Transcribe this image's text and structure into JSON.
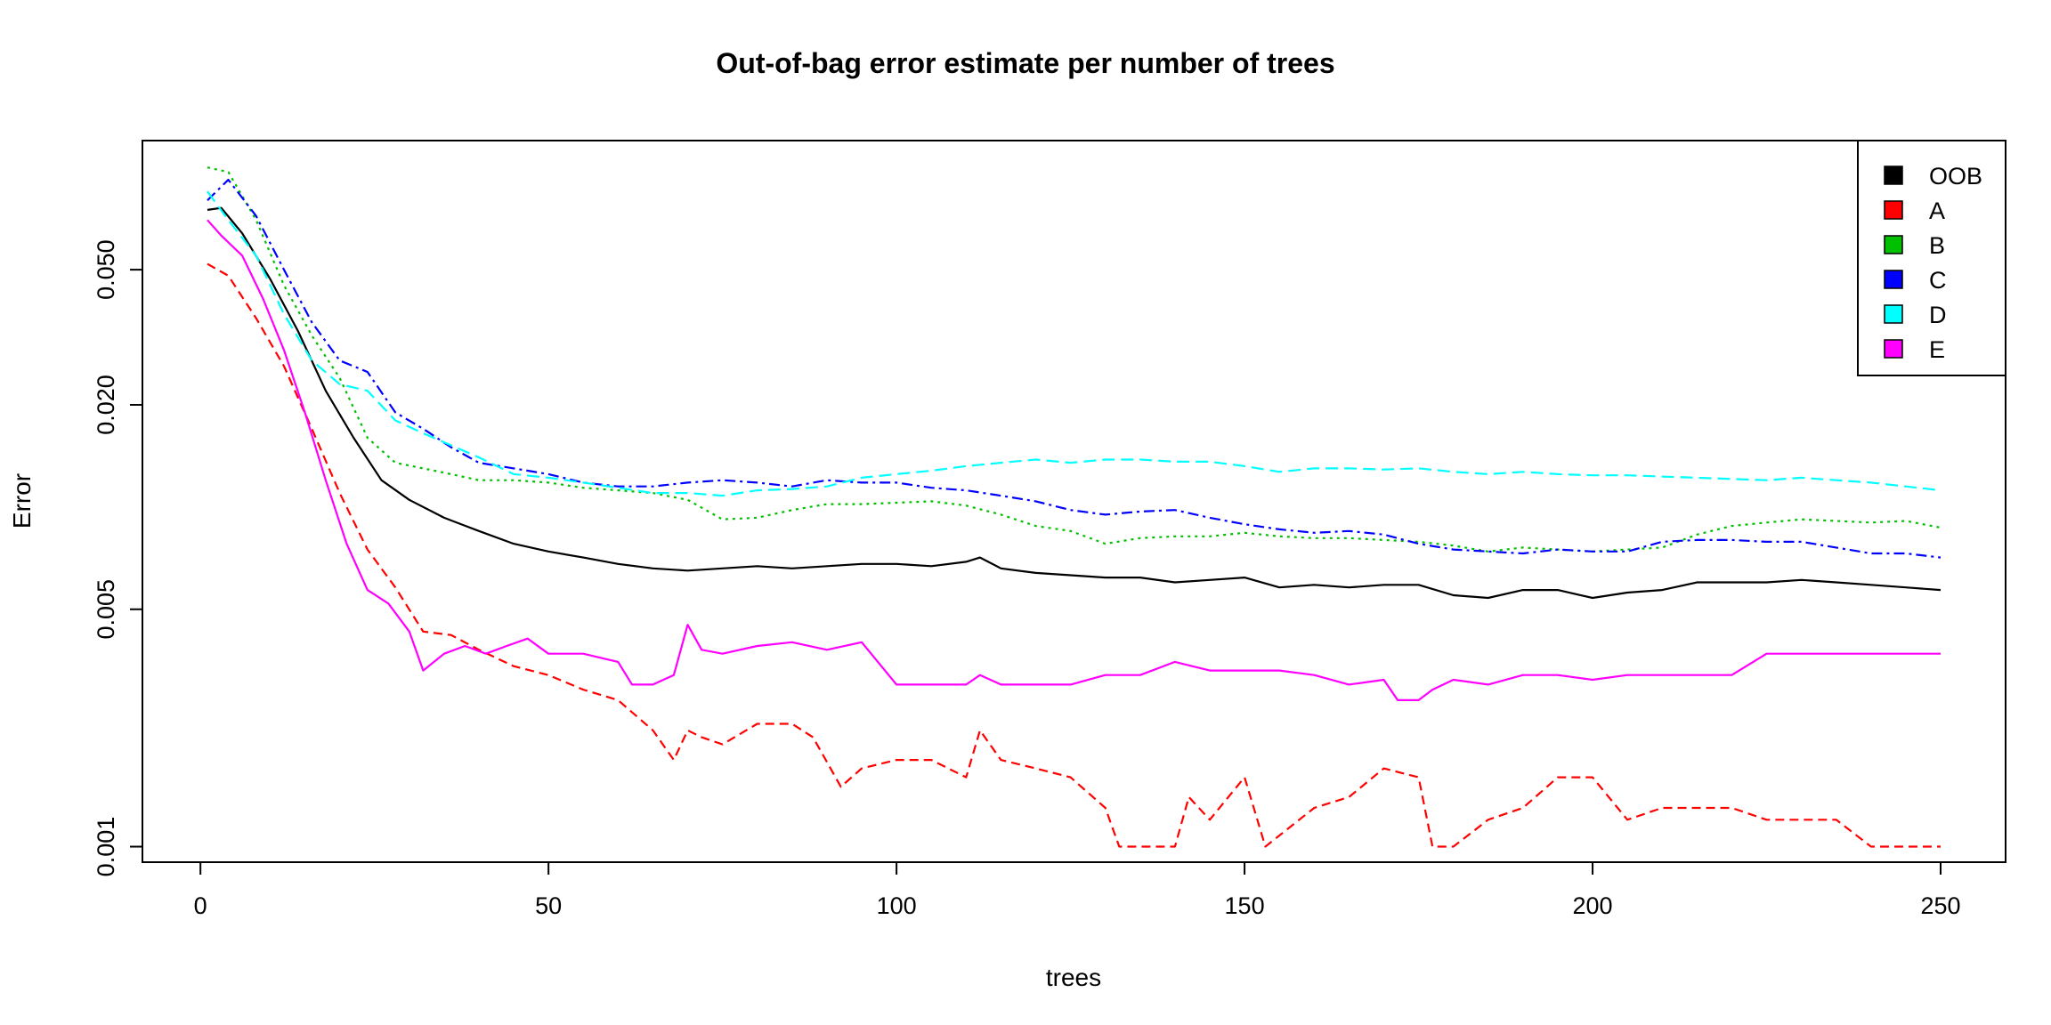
{
  "chart_data": {
    "type": "line",
    "title": "Out-of-bag error estimate per number of trees",
    "xlabel": "trees",
    "ylabel": "Error",
    "xlim": [
      1,
      250
    ],
    "ylim": [
      0.0009,
      0.12
    ],
    "y_scale": "log",
    "x_ticks": [
      0,
      50,
      100,
      150,
      200,
      250
    ],
    "y_ticks": [
      0.001,
      0.005,
      0.02,
      0.05
    ],
    "x_tick_labels": [
      "0",
      "50",
      "100",
      "150",
      "200",
      "250"
    ],
    "y_tick_labels": [
      "0.001",
      "0.005",
      "0.020",
      "0.050"
    ],
    "grid": false,
    "legend_position": "top-right",
    "series": [
      {
        "name": "OOB",
        "color": "#000000",
        "dash": "solid",
        "x": [
          1,
          3,
          6,
          10,
          14,
          18,
          22,
          26,
          30,
          35,
          40,
          45,
          50,
          55,
          60,
          65,
          70,
          75,
          80,
          85,
          90,
          95,
          100,
          105,
          110,
          112,
          115,
          120,
          125,
          130,
          135,
          140,
          145,
          150,
          155,
          160,
          165,
          170,
          175,
          180,
          185,
          190,
          195,
          200,
          205,
          210,
          215,
          220,
          225,
          230,
          235,
          240,
          245,
          250
        ],
        "y": [
          0.075,
          0.076,
          0.064,
          0.047,
          0.033,
          0.022,
          0.016,
          0.012,
          0.0105,
          0.0093,
          0.0085,
          0.0078,
          0.0074,
          0.0071,
          0.0068,
          0.0066,
          0.0065,
          0.0066,
          0.0067,
          0.0066,
          0.0067,
          0.0068,
          0.0068,
          0.0067,
          0.0069,
          0.0071,
          0.0066,
          0.0064,
          0.0063,
          0.0062,
          0.0062,
          0.006,
          0.0061,
          0.0062,
          0.0058,
          0.0059,
          0.0058,
          0.0059,
          0.0059,
          0.0055,
          0.0054,
          0.0057,
          0.0057,
          0.0054,
          0.0056,
          0.0057,
          0.006,
          0.006,
          0.006,
          0.0061,
          0.006,
          0.0059,
          0.0058,
          0.0057
        ]
      },
      {
        "name": "A",
        "color": "#ff0000",
        "dash": "10,6",
        "x": [
          1,
          4,
          8,
          12,
          16,
          20,
          24,
          28,
          32,
          36,
          40,
          45,
          50,
          55,
          60,
          65,
          68,
          70,
          72,
          75,
          80,
          85,
          88,
          92,
          95,
          100,
          105,
          110,
          112,
          115,
          120,
          125,
          130,
          132,
          135,
          140,
          142,
          145,
          150,
          153,
          160,
          165,
          170,
          175,
          177,
          180,
          185,
          190,
          195,
          200,
          205,
          210,
          215,
          220,
          225,
          230,
          235,
          240,
          245,
          250
        ],
        "y": [
          0.052,
          0.048,
          0.036,
          0.026,
          0.017,
          0.011,
          0.0075,
          0.0058,
          0.0043,
          0.0042,
          0.0038,
          0.0034,
          0.0032,
          0.0029,
          0.0027,
          0.0022,
          0.0018,
          0.0022,
          0.0021,
          0.002,
          0.0023,
          0.0023,
          0.0021,
          0.0015,
          0.0017,
          0.0018,
          0.0018,
          0.0016,
          0.0022,
          0.0018,
          0.0017,
          0.0016,
          0.0013,
          0.001,
          0.001,
          0.001,
          0.0014,
          0.0012,
          0.0016,
          0.001,
          0.0013,
          0.0014,
          0.0017,
          0.0016,
          0.001,
          0.001,
          0.0012,
          0.0013,
          0.0016,
          0.0016,
          0.0012,
          0.0013,
          0.0013,
          0.0013,
          0.0012,
          0.0012,
          0.0012,
          0.001,
          0.001,
          0.001
        ]
      },
      {
        "name": "B",
        "color": "#00c000",
        "dash": "3,5",
        "x": [
          1,
          4,
          8,
          12,
          16,
          20,
          24,
          28,
          32,
          36,
          40,
          45,
          50,
          55,
          60,
          65,
          70,
          75,
          80,
          85,
          90,
          95,
          100,
          105,
          110,
          115,
          120,
          125,
          130,
          135,
          140,
          145,
          150,
          155,
          160,
          165,
          170,
          175,
          180,
          185,
          190,
          195,
          200,
          205,
          210,
          215,
          220,
          225,
          230,
          235,
          240,
          245,
          250
        ],
        "y": [
          0.1,
          0.097,
          0.07,
          0.045,
          0.032,
          0.024,
          0.016,
          0.0135,
          0.013,
          0.0125,
          0.012,
          0.012,
          0.0118,
          0.0114,
          0.0112,
          0.011,
          0.0105,
          0.0092,
          0.0093,
          0.0098,
          0.0102,
          0.0102,
          0.0103,
          0.0104,
          0.0101,
          0.0095,
          0.0088,
          0.0085,
          0.0078,
          0.0081,
          0.0082,
          0.0082,
          0.0084,
          0.0082,
          0.0081,
          0.0081,
          0.008,
          0.0079,
          0.0077,
          0.0074,
          0.0076,
          0.0075,
          0.0074,
          0.0075,
          0.0076,
          0.0083,
          0.0088,
          0.009,
          0.0092,
          0.0091,
          0.009,
          0.0091,
          0.0087
        ]
      },
      {
        "name": "C",
        "color": "#0000ff",
        "dash": "12,5,3,5",
        "x": [
          1,
          4,
          8,
          12,
          16,
          20,
          24,
          28,
          32,
          36,
          40,
          45,
          50,
          55,
          60,
          65,
          70,
          75,
          80,
          85,
          90,
          95,
          100,
          105,
          110,
          115,
          120,
          125,
          130,
          135,
          140,
          145,
          150,
          155,
          160,
          165,
          170,
          175,
          180,
          185,
          190,
          195,
          200,
          205,
          210,
          215,
          220,
          225,
          230,
          235,
          240,
          245,
          250
        ],
        "y": [
          0.08,
          0.092,
          0.072,
          0.05,
          0.035,
          0.027,
          0.025,
          0.019,
          0.017,
          0.015,
          0.0135,
          0.013,
          0.0125,
          0.0118,
          0.0115,
          0.0115,
          0.0118,
          0.012,
          0.0118,
          0.0115,
          0.012,
          0.0118,
          0.0118,
          0.0114,
          0.0112,
          0.0108,
          0.0104,
          0.0098,
          0.0095,
          0.0097,
          0.0098,
          0.0093,
          0.0089,
          0.0086,
          0.0084,
          0.0085,
          0.0083,
          0.0078,
          0.0075,
          0.0074,
          0.0073,
          0.0075,
          0.0074,
          0.0074,
          0.0079,
          0.008,
          0.008,
          0.0079,
          0.0079,
          0.0076,
          0.0073,
          0.0073,
          0.0071
        ]
      },
      {
        "name": "D",
        "color": "#00ffff",
        "dash": "14,7",
        "x": [
          1,
          4,
          8,
          12,
          16,
          20,
          24,
          28,
          32,
          36,
          40,
          45,
          50,
          55,
          60,
          65,
          70,
          75,
          80,
          85,
          90,
          95,
          100,
          105,
          110,
          115,
          120,
          125,
          130,
          135,
          140,
          145,
          150,
          155,
          160,
          165,
          170,
          175,
          180,
          185,
          190,
          195,
          200,
          205,
          210,
          215,
          220,
          225,
          230,
          235,
          240,
          245,
          250
        ],
        "y": [
          0.085,
          0.07,
          0.055,
          0.037,
          0.027,
          0.023,
          0.022,
          0.018,
          0.0165,
          0.0152,
          0.014,
          0.0125,
          0.0122,
          0.0118,
          0.0114,
          0.011,
          0.011,
          0.0108,
          0.0112,
          0.0113,
          0.0115,
          0.0122,
          0.0125,
          0.0128,
          0.0132,
          0.0135,
          0.0138,
          0.0135,
          0.0138,
          0.0138,
          0.0136,
          0.0136,
          0.0132,
          0.0127,
          0.013,
          0.013,
          0.0129,
          0.013,
          0.0127,
          0.0125,
          0.0127,
          0.0125,
          0.0124,
          0.0124,
          0.0123,
          0.0122,
          0.0121,
          0.012,
          0.0122,
          0.012,
          0.0118,
          0.0115,
          0.0112
        ]
      },
      {
        "name": "E",
        "color": "#ff00ff",
        "dash": "solid",
        "x": [
          1,
          3,
          6,
          9,
          12,
          15,
          18,
          21,
          24,
          27,
          30,
          32,
          35,
          38,
          41,
          44,
          47,
          50,
          55,
          60,
          62,
          65,
          68,
          70,
          72,
          75,
          80,
          85,
          90,
          95,
          100,
          105,
          110,
          112,
          115,
          120,
          125,
          130,
          135,
          140,
          145,
          150,
          155,
          160,
          165,
          170,
          172,
          175,
          177,
          180,
          185,
          190,
          195,
          200,
          205,
          210,
          215,
          220,
          225,
          230,
          235,
          240,
          245,
          250
        ],
        "y": [
          0.07,
          0.063,
          0.055,
          0.041,
          0.029,
          0.019,
          0.012,
          0.0078,
          0.0057,
          0.0052,
          0.0043,
          0.0033,
          0.0037,
          0.0039,
          0.0037,
          0.0039,
          0.0041,
          0.0037,
          0.0037,
          0.0035,
          0.003,
          0.003,
          0.0032,
          0.0045,
          0.0038,
          0.0037,
          0.0039,
          0.004,
          0.0038,
          0.004,
          0.003,
          0.003,
          0.003,
          0.0032,
          0.003,
          0.003,
          0.003,
          0.0032,
          0.0032,
          0.0035,
          0.0033,
          0.0033,
          0.0033,
          0.0032,
          0.003,
          0.0031,
          0.0027,
          0.0027,
          0.0029,
          0.0031,
          0.003,
          0.0032,
          0.0032,
          0.0031,
          0.0032,
          0.0032,
          0.0032,
          0.0032,
          0.0037,
          0.0037,
          0.0037,
          0.0037,
          0.0037,
          0.0037
        ]
      }
    ]
  }
}
